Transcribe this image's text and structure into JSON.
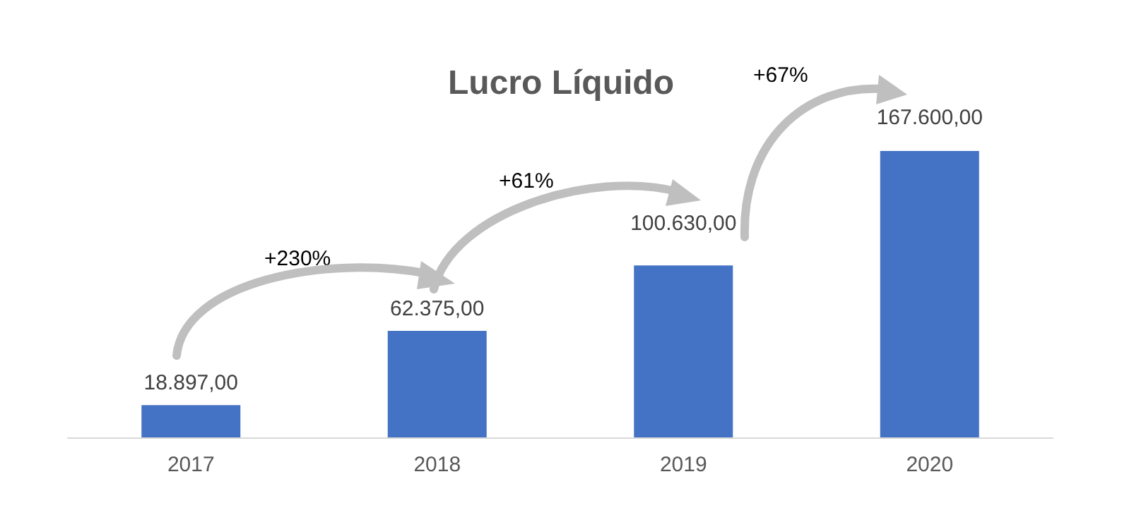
{
  "chart_data": {
    "type": "bar",
    "title": "Lucro Líquido",
    "categories": [
      "2017",
      "2018",
      "2019",
      "2020"
    ],
    "values": [
      18897,
      62375,
      100630,
      167600
    ],
    "value_labels": [
      "18.897,00",
      "62.375,00",
      "100.630,00",
      "167.600,00"
    ],
    "color": "#4472c4",
    "annotations": [
      "+230%",
      "+61%",
      "+67%"
    ],
    "grid": false
  }
}
